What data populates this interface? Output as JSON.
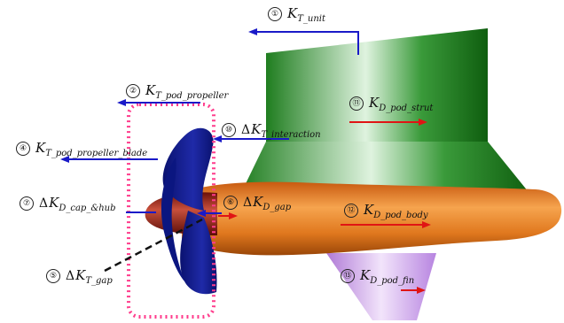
{
  "labels": [
    {
      "num": "①",
      "delta": "",
      "sym": "K",
      "sub": "T_unit"
    },
    {
      "num": "②",
      "delta": "",
      "sym": "K",
      "sub": "T_pod_propeller"
    },
    {
      "num": "④",
      "delta": "",
      "sym": "K",
      "sub": "T_pod_propeller_blade"
    },
    {
      "num": "⑩",
      "delta": "Δ",
      "sym": "K",
      "sub": "T_interaction"
    },
    {
      "num": "⑪",
      "delta": "",
      "sym": "K",
      "sub": "D_pod_strut"
    },
    {
      "num": "⑦",
      "delta": "Δ",
      "sym": "K",
      "sub": "D_cap_&hub"
    },
    {
      "num": "⑥",
      "delta": "Δ",
      "sym": "K",
      "sub": "D_gap"
    },
    {
      "num": "⑫",
      "delta": "",
      "sym": "K",
      "sub": "D_pod_body"
    },
    {
      "num": "⑤",
      "delta": "Δ",
      "sym": "K",
      "sub": "T_gap"
    },
    {
      "num": "⑬",
      "delta": "",
      "sym": "K",
      "sub": "D_pod_fin"
    }
  ],
  "colors": {
    "strut": "#1f8a1f",
    "body": "#e0781e",
    "propeller": "#121a8a",
    "hub": "#8e1a10",
    "fin": "#c99be6",
    "thrust_arrow": "#1a1ac8",
    "drag_arrow": "#e01414",
    "dashed_box": "#ff3c8c"
  }
}
